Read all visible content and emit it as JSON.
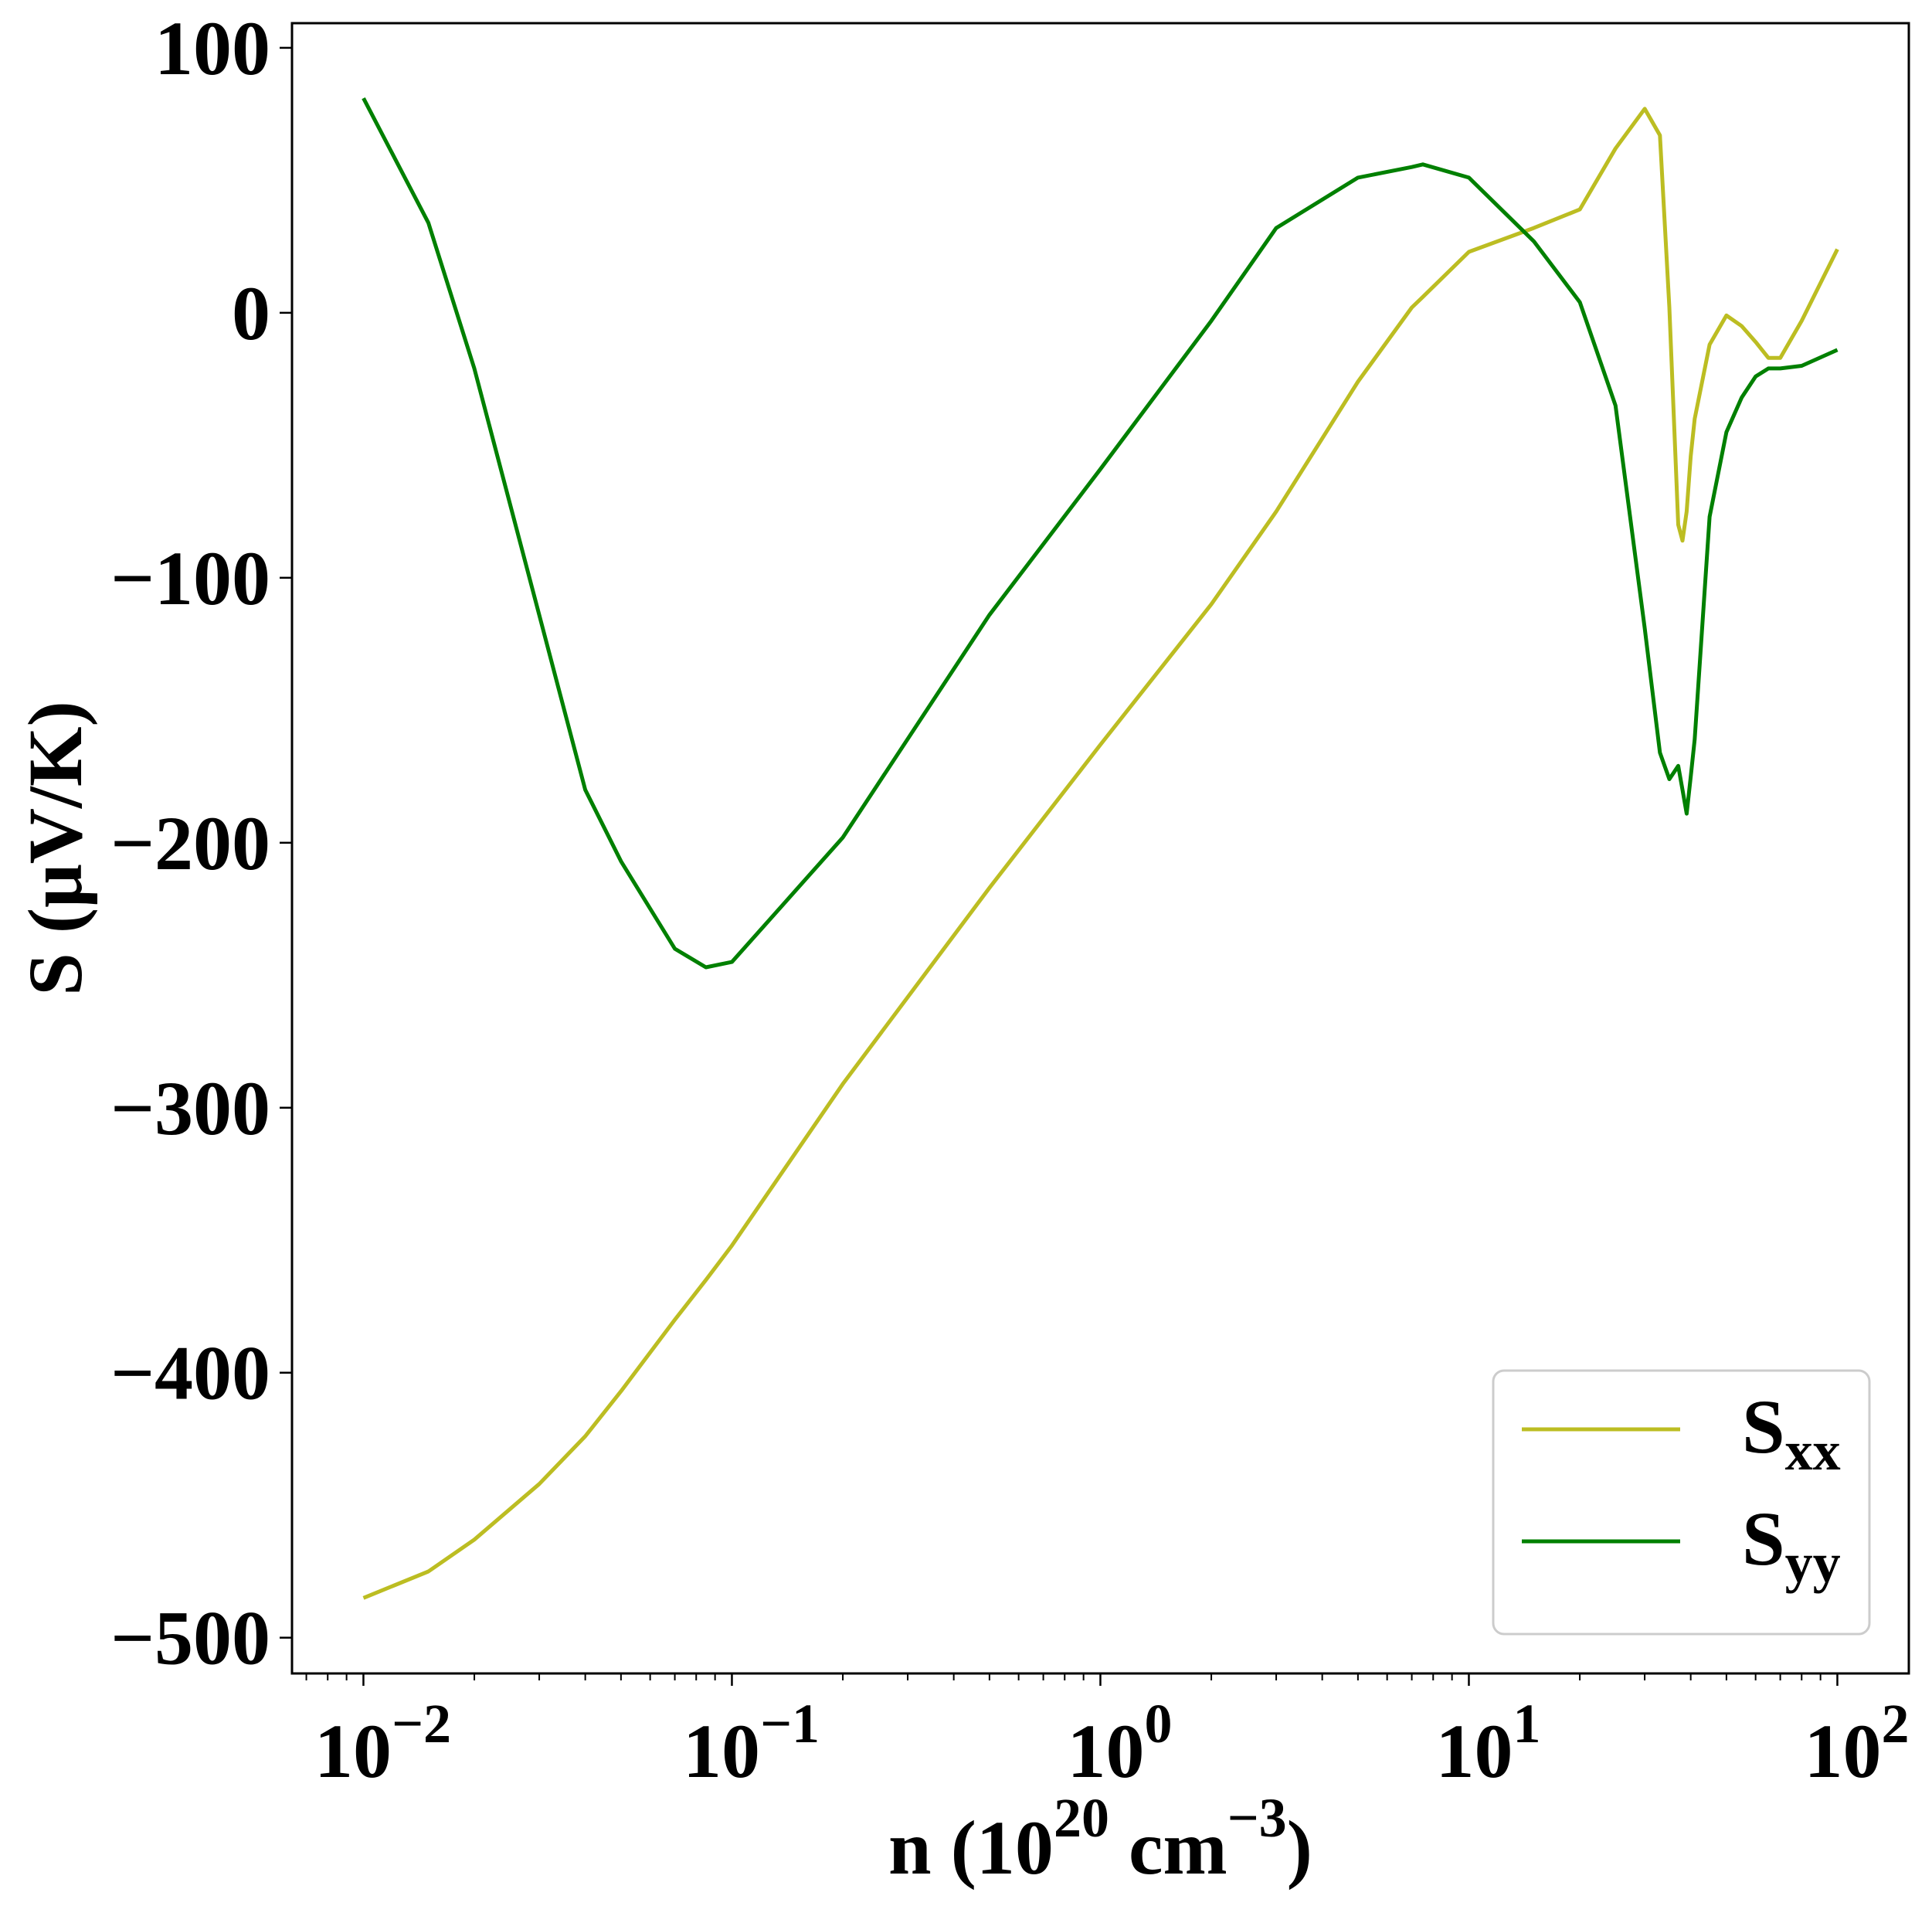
{
  "chart_data": {
    "type": "line",
    "xlabel": [
      "n (10",
      "20",
      " cm",
      "−3",
      ")"
    ],
    "ylabel": "S (μV/K)",
    "x": [
      0.01,
      0.015,
      0.02,
      0.03,
      0.04,
      0.05,
      0.07,
      0.085,
      0.1,
      0.2,
      0.5,
      1,
      2,
      3,
      5,
      7,
      7.5,
      10,
      15,
      20,
      25,
      30,
      33,
      35,
      37,
      38,
      39,
      40,
      41,
      45,
      50,
      55,
      60,
      65,
      70,
      80,
      100
    ],
    "series": [
      {
        "name": "Sxx",
        "color": "#bcbd22",
        "values": [
          -485,
          -475,
          -463,
          -442,
          -424,
          -407,
          -380,
          -365,
          -352,
          -291,
          -217,
          -163,
          -110,
          -75,
          -26,
          2,
          6,
          23,
          32,
          39,
          62,
          77,
          67,
          2,
          -80,
          -86,
          -75,
          -54,
          -40,
          -12,
          -1,
          -5,
          -11,
          -17,
          -17,
          -3,
          24
        ]
      },
      {
        "name": "Syy",
        "color": "#008000",
        "values": [
          81,
          34,
          -21,
          -114,
          -180,
          -207,
          -240,
          -247,
          -245,
          -198,
          -114,
          -59,
          -3,
          32,
          51,
          55,
          56,
          51,
          27,
          4,
          -35,
          -119,
          -166,
          -176,
          -171,
          -180,
          -189,
          -175,
          -161,
          -77,
          -45,
          -32,
          -24,
          -21,
          -21,
          -20,
          -14
        ]
      }
    ],
    "log_x": true,
    "xlim": [
      0.0064,
      156.3
    ],
    "ylim": [
      -513.5,
      109.3
    ],
    "xticks": [
      {
        "value": 0.01,
        "label": "10−2"
      },
      {
        "value": 0.1,
        "label": "10−1"
      },
      {
        "value": 1,
        "label": "100"
      },
      {
        "value": 10,
        "label": "101"
      },
      {
        "value": 100,
        "label": "102"
      }
    ],
    "yticks": [
      {
        "value": -500,
        "label": "−500"
      },
      {
        "value": -400,
        "label": "−400"
      },
      {
        "value": -300,
        "label": "−300"
      },
      {
        "value": -200,
        "label": "−200"
      },
      {
        "value": -100,
        "label": "−100"
      },
      0,
      100
    ],
    "legend": "lower right",
    "grid": false
  }
}
